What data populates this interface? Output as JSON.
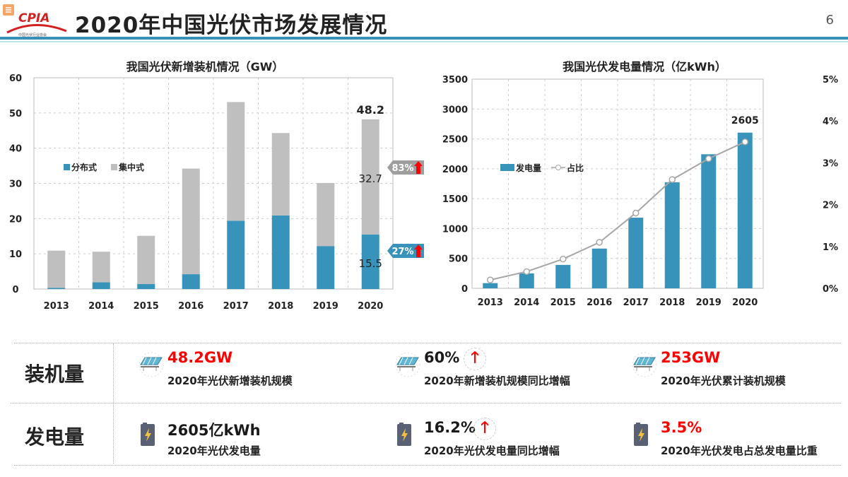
{
  "header": {
    "title": "2020年中国光伏市场发展情况",
    "page_number": "6",
    "logo_text": "CPIA",
    "accent_color": "#3a8fb7"
  },
  "chart_data": [
    {
      "type": "bar",
      "stacked": true,
      "title": "我国光伏新增装机情况（GW）",
      "categories": [
        "2013",
        "2014",
        "2015",
        "2016",
        "2017",
        "2018",
        "2019",
        "2020"
      ],
      "series": [
        {
          "name": "分布式",
          "color": "#3793b9",
          "values": [
            0.3,
            1.9,
            1.4,
            4.2,
            19.4,
            20.9,
            12.2,
            15.5
          ]
        },
        {
          "name": "集中式",
          "color": "#bfbfbf",
          "values": [
            10.6,
            8.7,
            13.7,
            30.0,
            33.7,
            23.4,
            17.9,
            32.7
          ]
        }
      ],
      "ylim": [
        0,
        60
      ],
      "yticks": [
        "0",
        "10",
        "20",
        "30",
        "40",
        "50",
        "60"
      ],
      "grid": true,
      "legend": "left-middle",
      "annotations": {
        "total_2020": "48.2",
        "central_2020": "32.7",
        "distributed_2020": "15.5",
        "central_growth": "83%",
        "distributed_growth": "27%"
      }
    },
    {
      "type": "bar+line",
      "title": "我国光伏发电量情况（亿kWh）",
      "categories": [
        "2013",
        "2014",
        "2015",
        "2016",
        "2017",
        "2018",
        "2019",
        "2020"
      ],
      "series": [
        {
          "name": "发电量",
          "type": "bar",
          "axis": "left",
          "color": "#3793b9",
          "values": [
            87,
            250,
            392,
            665,
            1182,
            1775,
            2243,
            2605
          ]
        },
        {
          "name": "占比",
          "type": "line",
          "axis": "right",
          "color": "#a6a6a6",
          "values": [
            0.2,
            0.4,
            0.7,
            1.1,
            1.8,
            2.6,
            3.1,
            3.5
          ]
        }
      ],
      "ylim": [
        0,
        3500
      ],
      "yticks": [
        "0",
        "500",
        "1000",
        "1500",
        "2000",
        "2500",
        "3000",
        "3500"
      ],
      "y2lim": [
        0,
        5
      ],
      "y2ticks": [
        "0%",
        "1%",
        "2%",
        "3%",
        "4%",
        "5%"
      ],
      "grid": true,
      "legend": "left-middle",
      "annotations": {
        "value_2020": "2605"
      }
    }
  ],
  "summary": {
    "rows": [
      {
        "label": "装机量",
        "items": [
          {
            "value": "48.2GW",
            "caption": "2020年光伏新增装机规模",
            "icon": "solar-panel-icon",
            "red": true,
            "up": false
          },
          {
            "value": "60%",
            "caption": "2020年新增装机规模同比增幅",
            "icon": "solar-panel-icon",
            "red": false,
            "up": true
          },
          {
            "value": "253GW",
            "caption": "2020年光伏累计装机规模",
            "icon": "solar-panel-icon",
            "red": true,
            "up": false
          }
        ]
      },
      {
        "label": "发电量",
        "items": [
          {
            "value": "2605亿kWh",
            "caption": "2020年光伏发电量",
            "icon": "battery-lightning-icon",
            "red": false,
            "up": false
          },
          {
            "value": "16.2%",
            "caption": "2020年光伏发电量同比增幅",
            "icon": "battery-lightning-icon",
            "red": false,
            "up": true
          },
          {
            "value": "3.5%",
            "caption": "2020年光伏发电占总发电量比重",
            "icon": "battery-lightning-icon",
            "red": true,
            "up": false
          }
        ]
      }
    ],
    "up_arrow": "🡑"
  }
}
